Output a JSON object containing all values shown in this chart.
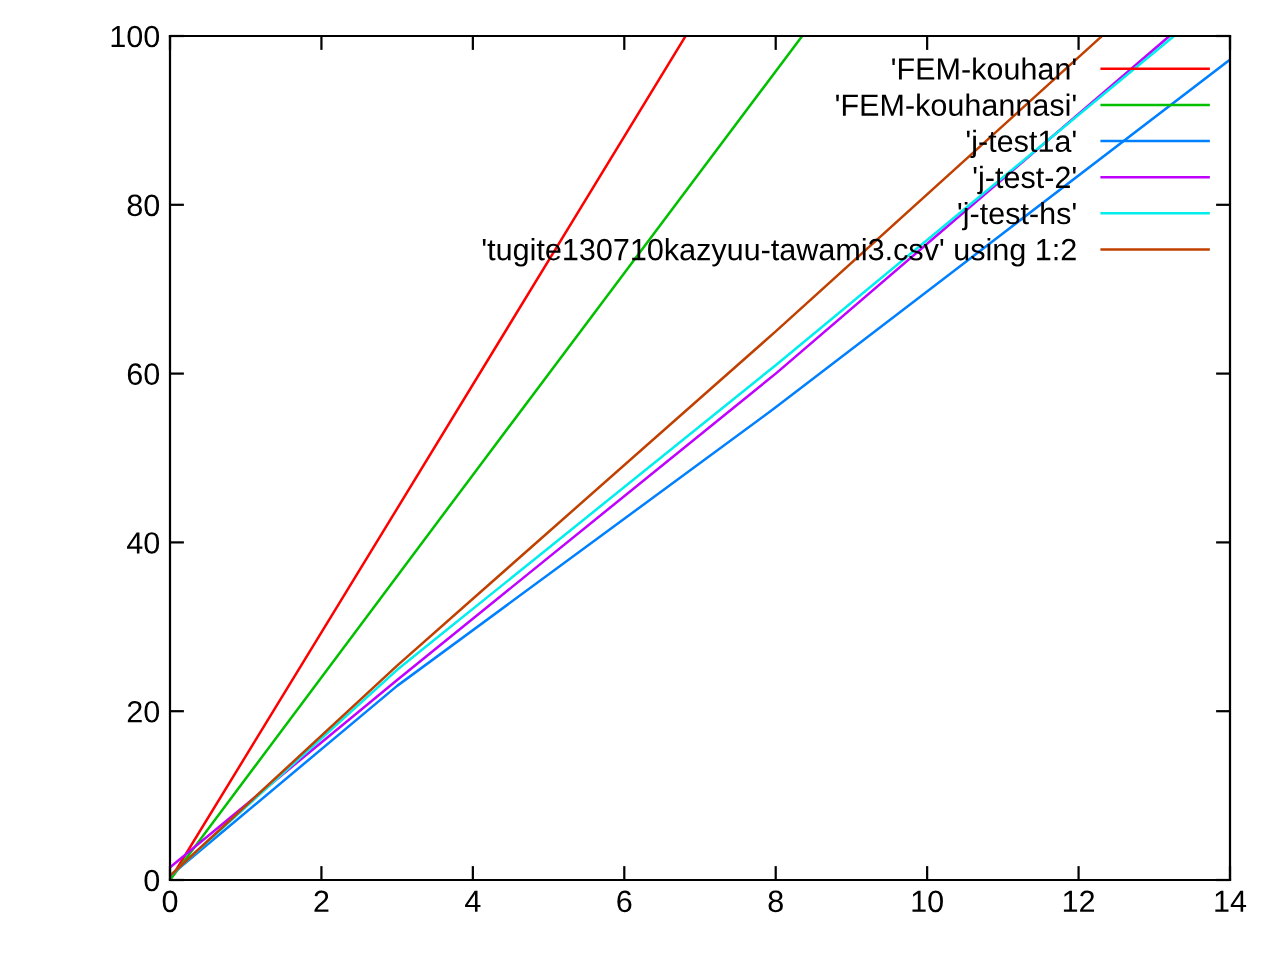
{
  "chart_data": {
    "type": "line",
    "series": [
      {
        "name": "'FEM-kouhan'",
        "color": "#ff0000",
        "x": [
          0,
          3,
          6.81
        ],
        "values": [
          0,
          44,
          100
        ]
      },
      {
        "name": "'FEM-kouhannasi'",
        "color": "#00c000",
        "x": [
          0,
          4,
          8.35
        ],
        "values": [
          0,
          48,
          100
        ]
      },
      {
        "name": "'j-test1a'",
        "color": "#0080ff",
        "x": [
          0,
          3,
          8,
          14
        ],
        "values": [
          0.5,
          23,
          56,
          97.2
        ]
      },
      {
        "name": "'j-test-2'",
        "color": "#c000ff",
        "x": [
          0,
          3,
          8,
          13.2
        ],
        "values": [
          1.5,
          23.7,
          60,
          100
        ]
      },
      {
        "name": "'j-test-hs'",
        "color": "#00eeee",
        "x": [
          0,
          3,
          8,
          13.26
        ],
        "values": [
          0.5,
          24.9,
          61,
          100
        ]
      },
      {
        "name": "'tugite130710kazyuu-tawami3.csv' using 1:2",
        "color": "#c04000",
        "x": [
          0,
          3,
          8,
          12.31
        ],
        "values": [
          0.5,
          25.4,
          65,
          100
        ]
      }
    ],
    "xlim": [
      0,
      14
    ],
    "xticks": [
      0,
      2,
      4,
      6,
      8,
      10,
      12,
      14
    ],
    "ylim": [
      0,
      100
    ],
    "yticks": [
      0,
      20,
      40,
      60,
      80,
      100
    ],
    "grid": false,
    "legend": "top right",
    "marker": "none",
    "line_style": "solid"
  }
}
